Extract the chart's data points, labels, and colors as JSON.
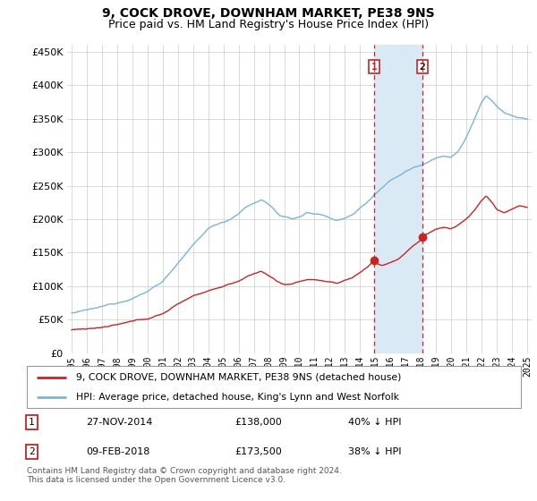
{
  "title": "9, COCK DROVE, DOWNHAM MARKET, PE38 9NS",
  "subtitle": "Price paid vs. HM Land Registry's House Price Index (HPI)",
  "legend_line1": "9, COCK DROVE, DOWNHAM MARKET, PE38 9NS (detached house)",
  "legend_line2": "HPI: Average price, detached house, King's Lynn and West Norfolk",
  "footer": "Contains HM Land Registry data © Crown copyright and database right 2024.\nThis data is licensed under the Open Government Licence v3.0.",
  "transaction1_date": "27-NOV-2014",
  "transaction1_price": "£138,000",
  "transaction1_hpi": "40% ↓ HPI",
  "transaction2_date": "09-FEB-2018",
  "transaction2_price": "£173,500",
  "transaction2_hpi": "38% ↓ HPI",
  "hpi_color": "#7ab4d8",
  "price_color": "#cc2222",
  "shaded_color": "#daeaf5",
  "vline_color": "#cc2222",
  "point1_x": 2014.92,
  "point1_y": 138000,
  "point2_x": 2018.11,
  "point2_y": 173500,
  "ylim": [
    0,
    460000
  ],
  "xlim_start": 1994.7,
  "xlim_end": 2025.3
}
